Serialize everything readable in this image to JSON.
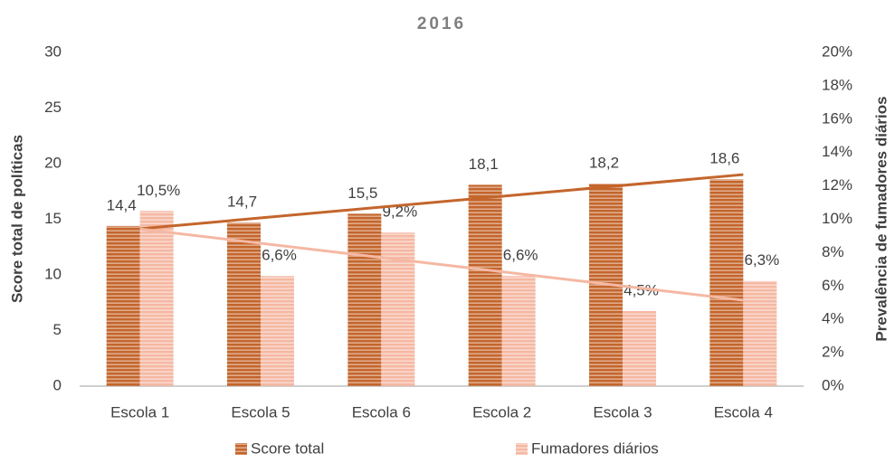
{
  "chart_data": {
    "type": "bar",
    "title": "2016",
    "categories": [
      "Escola 1",
      "Escola 5",
      "Escola 6",
      "Escola 2",
      "Escola 3",
      "Escola 4"
    ],
    "series": [
      {
        "name": "Score total",
        "color": "#c4652c",
        "pattern": "stripes",
        "trendline": "linear",
        "values": [
          14.4,
          14.7,
          15.5,
          18.1,
          18.2,
          18.6
        ],
        "value_labels": [
          "14,4",
          "14,7",
          "15,5",
          "18,1",
          "18,2",
          "18,6"
        ]
      },
      {
        "name": "Fumadores diários",
        "color": "#f5b8a3",
        "pattern": "stripes",
        "trendline": "linear",
        "axis": "y2",
        "values": [
          10.5,
          6.6,
          9.2,
          6.6,
          4.5,
          6.3
        ],
        "value_labels": [
          "10,5%",
          "6,6%",
          "9,2%",
          "6,6%",
          "4,5%",
          "6,3%"
        ]
      }
    ],
    "ylabel": "Score total de políticas",
    "y2label": "Prevalência de fumadores diários",
    "ylim": [
      0,
      30
    ],
    "yticks": [
      0,
      5,
      10,
      15,
      20,
      25,
      30
    ],
    "y2lim": [
      0,
      20
    ],
    "y2ticks": [
      {
        "value": 0,
        "label": "0%"
      },
      {
        "value": 2,
        "label": "2%"
      },
      {
        "value": 4,
        "label": "4%"
      },
      {
        "value": 6,
        "label": "6%"
      },
      {
        "value": 8,
        "label": "8%"
      },
      {
        "value": 10,
        "label": "10%"
      },
      {
        "value": 12,
        "label": "12%"
      },
      {
        "value": 14,
        "label": "14%"
      },
      {
        "value": 16,
        "label": "16%"
      },
      {
        "value": 18,
        "label": "18%"
      },
      {
        "value": 20,
        "label": "20%"
      }
    ],
    "legend": "bottom",
    "grid": false
  }
}
